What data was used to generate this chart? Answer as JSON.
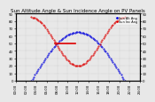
{
  "title": "Sun Altitude Angle & Sun Incidence Angle on PV Panels",
  "background": "#e8e8e8",
  "grid_color": "#aaaaaa",
  "blue_color": "#0000dd",
  "red_color": "#dd0000",
  "title_fontsize": 4.0,
  "tick_fontsize": 2.8,
  "legend_fontsize": 2.5,
  "xlim": [
    0,
    24
  ],
  "ylim": [
    0,
    90
  ],
  "x_ticks": [
    0,
    2,
    4,
    6,
    8,
    10,
    12,
    14,
    16,
    18,
    20,
    22,
    24
  ],
  "x_labels": [
    "00:00",
    "02:00",
    "04:00",
    "06:00",
    "08:00",
    "10:00",
    "12:00",
    "14:00",
    "16:00",
    "18:00",
    "20:00",
    "22:00",
    "24:00"
  ],
  "y_ticks": [
    0,
    10,
    20,
    30,
    40,
    50,
    60,
    70,
    80,
    90
  ],
  "blue_t_start": 3,
  "blue_t_end": 21,
  "blue_peak": 65,
  "red_min": 20,
  "red_edge": 85,
  "hline_xstart": 7.5,
  "hline_xend": 11.5,
  "hline_y": 50,
  "legend_blue": "Sun Alt Ang",
  "legend_red": "Sun Inc Ang"
}
